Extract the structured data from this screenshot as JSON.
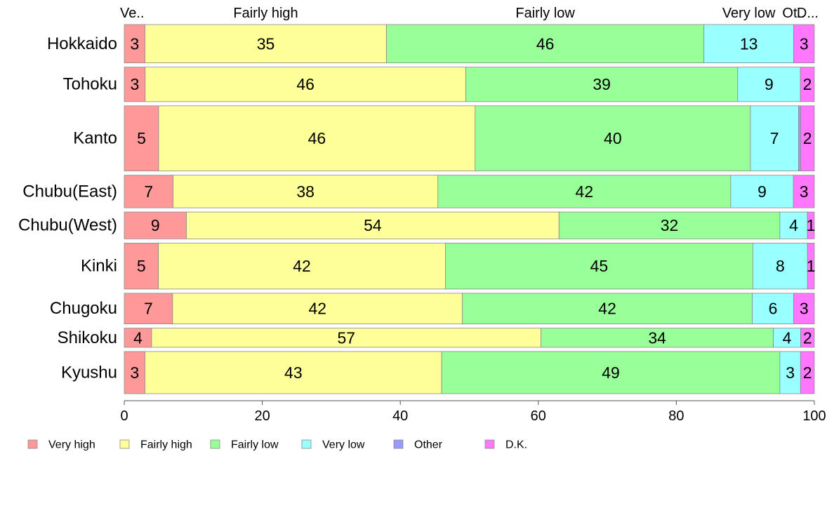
{
  "chart_data": {
    "type": "bar",
    "orientation": "horizontal",
    "stacked": true,
    "categories": [
      "Hokkaido",
      "Tohoku",
      "Kanto",
      "Chubu(East)",
      "Chubu(West)",
      "Kinki",
      "Chugoku",
      "Shikoku",
      "Kyushu"
    ],
    "category_weights": [
      1.0,
      0.9,
      1.7,
      0.85,
      0.7,
      1.2,
      0.8,
      0.5,
      1.1
    ],
    "top_labels": [
      "Ve..",
      "Fairly high",
      "Fairly low",
      "Very low",
      "Ot..",
      "D..."
    ],
    "series": [
      {
        "name": "Very high",
        "color": "#ff9999",
        "values": [
          3,
          3,
          5,
          7,
          9,
          5,
          7,
          4,
          3
        ],
        "labels": [
          "3",
          "3",
          "5",
          "7",
          "9",
          "5",
          "7",
          "4",
          "3"
        ]
      },
      {
        "name": "Fairly high",
        "color": "#ffff99",
        "values": [
          35,
          46,
          46,
          38,
          54,
          42,
          42,
          57,
          43
        ],
        "labels": [
          "35",
          "46",
          "46",
          "38",
          "54",
          "42",
          "42",
          "57",
          "43"
        ]
      },
      {
        "name": "Fairly low",
        "color": "#99ff99",
        "values": [
          46,
          39,
          40,
          42,
          32,
          45,
          42,
          34,
          49
        ],
        "labels": [
          "46",
          "39",
          "40",
          "42",
          "32",
          "45",
          "42",
          "34",
          "49"
        ]
      },
      {
        "name": "Very low",
        "color": "#99ffff",
        "values": [
          13,
          9,
          7,
          9,
          4,
          8,
          6,
          4,
          3
        ],
        "labels": [
          "13",
          "9",
          "7",
          "9",
          "4",
          "8",
          "6",
          "4",
          "3"
        ]
      },
      {
        "name": "Other",
        "color": "#9999ff",
        "values": [
          0,
          0,
          0.3,
          0,
          0,
          0,
          0,
          0,
          0
        ],
        "labels": [
          "",
          "",
          "",
          "",
          "",
          "",
          "",
          "",
          ""
        ]
      },
      {
        "name": "D.K.",
        "color": "#ff77ff",
        "values": [
          3,
          2,
          2,
          3,
          1,
          1,
          3,
          2,
          2
        ],
        "labels": [
          "3",
          "2",
          "2",
          "3",
          "1",
          "1",
          "3",
          "2",
          "2"
        ]
      }
    ],
    "xlim": [
      0,
      100
    ],
    "xticks": [
      "0",
      "20",
      "40",
      "60",
      "80",
      "100"
    ],
    "grid": false,
    "legend_position": "bottom-left",
    "title": "",
    "xlabel": "",
    "ylabel": ""
  }
}
